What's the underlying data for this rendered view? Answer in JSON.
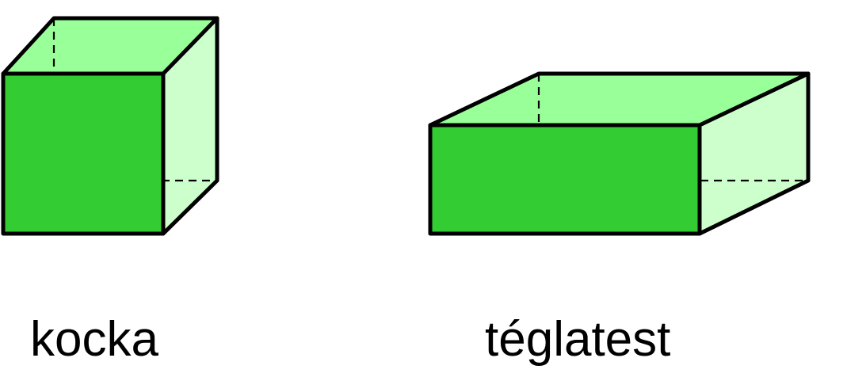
{
  "colors": {
    "front_face": "#33cc33",
    "top_face": "#99ff99",
    "side_face": "#ccffcc",
    "edge": "#000000"
  },
  "shapes": {
    "cube": {
      "label": "kocka"
    },
    "cuboid": {
      "label": "téglatest"
    }
  }
}
